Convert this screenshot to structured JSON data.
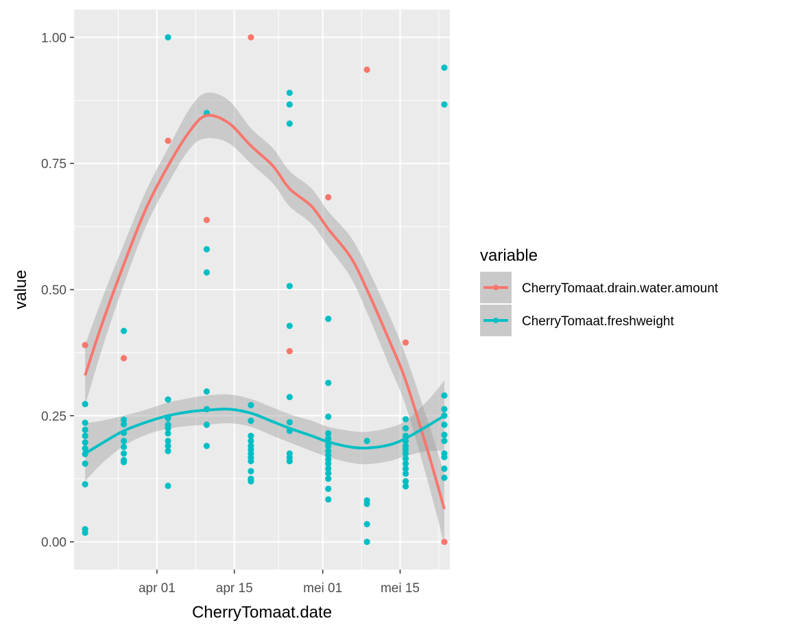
{
  "chart_data": {
    "type": "scatter",
    "xlabel": "CherryTomaat.date",
    "ylabel": "value",
    "x_tick_labels": [
      {
        "date": "2023-04-01",
        "label": "apr 01"
      },
      {
        "date": "2023-04-15",
        "label": "apr 15"
      },
      {
        "date": "2023-05-01",
        "label": "mei 01"
      },
      {
        "date": "2023-05-15",
        "label": "mei 15"
      }
    ],
    "xlim": [
      "2023-03-17",
      "2023-05-24"
    ],
    "y_tick_labels": [
      "0.00",
      "0.25",
      "0.50",
      "0.75",
      "1.00"
    ],
    "y_ticks": [
      0,
      0.25,
      0.5,
      0.75,
      1.0
    ],
    "ylim": [
      -0.055,
      1.055
    ],
    "grid": true,
    "smoothing": "loess with 95% confidence band",
    "legend": {
      "title": "variable",
      "position": "right",
      "entries": [
        "CherryTomaat.drain.water.amount",
        "CherryTomaat.freshweight"
      ]
    },
    "colors": {
      "panel": "#ebebeb",
      "grid_major": "#ffffff",
      "band": "#999999",
      "drain": "#F8766D",
      "fresh": "#00BFC4"
    },
    "series": [
      {
        "name": "CherryTomaat.drain.water.amount",
        "color": "#F8766D",
        "points": [
          {
            "x": "2023-03-19",
            "y": 0.39
          },
          {
            "x": "2023-03-26",
            "y": 0.364
          },
          {
            "x": "2023-04-03",
            "y": 0.795
          },
          {
            "x": "2023-04-10",
            "y": 0.638
          },
          {
            "x": "2023-04-18",
            "y": 1.0
          },
          {
            "x": "2023-04-25",
            "y": 0.378
          },
          {
            "x": "2023-05-02",
            "y": 0.683
          },
          {
            "x": "2023-05-09",
            "y": 0.936
          },
          {
            "x": "2023-05-16",
            "y": 0.395
          },
          {
            "x": "2023-05-23",
            "y": 0.0
          }
        ],
        "smooth": [
          {
            "x": "2023-03-19",
            "y": 0.33,
            "lo": 0.27,
            "hi": 0.39
          },
          {
            "x": "2023-03-22",
            "y": 0.43,
            "lo": 0.38,
            "hi": 0.48
          },
          {
            "x": "2023-03-26",
            "y": 0.55,
            "lo": 0.51,
            "hi": 0.59
          },
          {
            "x": "2023-03-30",
            "y": 0.66,
            "lo": 0.625,
            "hi": 0.695
          },
          {
            "x": "2023-04-03",
            "y": 0.745,
            "lo": 0.71,
            "hi": 0.78
          },
          {
            "x": "2023-04-07",
            "y": 0.815,
            "lo": 0.78,
            "hi": 0.86
          },
          {
            "x": "2023-04-10",
            "y": 0.845,
            "lo": 0.8,
            "hi": 0.89
          },
          {
            "x": "2023-04-14",
            "y": 0.83,
            "lo": 0.79,
            "hi": 0.875
          },
          {
            "x": "2023-04-18",
            "y": 0.785,
            "lo": 0.75,
            "hi": 0.82
          },
          {
            "x": "2023-04-22",
            "y": 0.745,
            "lo": 0.71,
            "hi": 0.78
          },
          {
            "x": "2023-04-25",
            "y": 0.7,
            "lo": 0.665,
            "hi": 0.735
          },
          {
            "x": "2023-04-29",
            "y": 0.665,
            "lo": 0.63,
            "hi": 0.7
          },
          {
            "x": "2023-05-02",
            "y": 0.62,
            "lo": 0.585,
            "hi": 0.655
          },
          {
            "x": "2023-05-06",
            "y": 0.565,
            "lo": 0.525,
            "hi": 0.605
          },
          {
            "x": "2023-05-09",
            "y": 0.5,
            "lo": 0.455,
            "hi": 0.545
          },
          {
            "x": "2023-05-13",
            "y": 0.4,
            "lo": 0.35,
            "hi": 0.45
          },
          {
            "x": "2023-05-16",
            "y": 0.32,
            "lo": 0.27,
            "hi": 0.37
          },
          {
            "x": "2023-05-20",
            "y": 0.18,
            "lo": 0.12,
            "hi": 0.24
          },
          {
            "x": "2023-05-23",
            "y": 0.065,
            "lo": -0.005,
            "hi": 0.135
          }
        ]
      },
      {
        "name": "CherryTomaat.freshweight",
        "color": "#00BFC4",
        "points": [
          {
            "x": "2023-03-19",
            "y": 0.273
          },
          {
            "x": "2023-03-19",
            "y": 0.236
          },
          {
            "x": "2023-03-19",
            "y": 0.222
          },
          {
            "x": "2023-03-19",
            "y": 0.21
          },
          {
            "x": "2023-03-19",
            "y": 0.197
          },
          {
            "x": "2023-03-19",
            "y": 0.185
          },
          {
            "x": "2023-03-19",
            "y": 0.174
          },
          {
            "x": "2023-03-19",
            "y": 0.155
          },
          {
            "x": "2023-03-19",
            "y": 0.114
          },
          {
            "x": "2023-03-19",
            "y": 0.025
          },
          {
            "x": "2023-03-19",
            "y": 0.018
          },
          {
            "x": "2023-03-26",
            "y": 0.418
          },
          {
            "x": "2023-03-26",
            "y": 0.242
          },
          {
            "x": "2023-03-26",
            "y": 0.233
          },
          {
            "x": "2023-03-26",
            "y": 0.216
          },
          {
            "x": "2023-03-26",
            "y": 0.2
          },
          {
            "x": "2023-03-26",
            "y": 0.188
          },
          {
            "x": "2023-03-26",
            "y": 0.175
          },
          {
            "x": "2023-03-26",
            "y": 0.162
          },
          {
            "x": "2023-03-26",
            "y": 0.158
          },
          {
            "x": "2023-04-03",
            "y": 1.0
          },
          {
            "x": "2023-04-03",
            "y": 0.282
          },
          {
            "x": "2023-04-03",
            "y": 0.245
          },
          {
            "x": "2023-04-03",
            "y": 0.232
          },
          {
            "x": "2023-04-03",
            "y": 0.225
          },
          {
            "x": "2023-04-03",
            "y": 0.215
          },
          {
            "x": "2023-04-03",
            "y": 0.2
          },
          {
            "x": "2023-04-03",
            "y": 0.19
          },
          {
            "x": "2023-04-03",
            "y": 0.18
          },
          {
            "x": "2023-04-03",
            "y": 0.111
          },
          {
            "x": "2023-04-10",
            "y": 0.85
          },
          {
            "x": "2023-04-10",
            "y": 0.58
          },
          {
            "x": "2023-04-10",
            "y": 0.534
          },
          {
            "x": "2023-04-10",
            "y": 0.298
          },
          {
            "x": "2023-04-10",
            "y": 0.263
          },
          {
            "x": "2023-04-10",
            "y": 0.232
          },
          {
            "x": "2023-04-10",
            "y": 0.19
          },
          {
            "x": "2023-04-18",
            "y": 0.271
          },
          {
            "x": "2023-04-18",
            "y": 0.24
          },
          {
            "x": "2023-04-18",
            "y": 0.21
          },
          {
            "x": "2023-04-18",
            "y": 0.2
          },
          {
            "x": "2023-04-18",
            "y": 0.19
          },
          {
            "x": "2023-04-18",
            "y": 0.183
          },
          {
            "x": "2023-04-18",
            "y": 0.175
          },
          {
            "x": "2023-04-18",
            "y": 0.167
          },
          {
            "x": "2023-04-18",
            "y": 0.16
          },
          {
            "x": "2023-04-18",
            "y": 0.14
          },
          {
            "x": "2023-04-18",
            "y": 0.125
          },
          {
            "x": "2023-04-18",
            "y": 0.12
          },
          {
            "x": "2023-04-25",
            "y": 0.89
          },
          {
            "x": "2023-04-25",
            "y": 0.867
          },
          {
            "x": "2023-04-25",
            "y": 0.829
          },
          {
            "x": "2023-04-25",
            "y": 0.507
          },
          {
            "x": "2023-04-25",
            "y": 0.428
          },
          {
            "x": "2023-04-25",
            "y": 0.287
          },
          {
            "x": "2023-04-25",
            "y": 0.237
          },
          {
            "x": "2023-04-25",
            "y": 0.22
          },
          {
            "x": "2023-04-25",
            "y": 0.175
          },
          {
            "x": "2023-04-25",
            "y": 0.167
          },
          {
            "x": "2023-04-25",
            "y": 0.16
          },
          {
            "x": "2023-05-02",
            "y": 0.442
          },
          {
            "x": "2023-05-02",
            "y": 0.315
          },
          {
            "x": "2023-05-02",
            "y": 0.248
          },
          {
            "x": "2023-05-02",
            "y": 0.215
          },
          {
            "x": "2023-05-02",
            "y": 0.205
          },
          {
            "x": "2023-05-02",
            "y": 0.197
          },
          {
            "x": "2023-05-02",
            "y": 0.19
          },
          {
            "x": "2023-05-02",
            "y": 0.18
          },
          {
            "x": "2023-05-02",
            "y": 0.172
          },
          {
            "x": "2023-05-02",
            "y": 0.163
          },
          {
            "x": "2023-05-02",
            "y": 0.155
          },
          {
            "x": "2023-05-02",
            "y": 0.145
          },
          {
            "x": "2023-05-02",
            "y": 0.136
          },
          {
            "x": "2023-05-02",
            "y": 0.125
          },
          {
            "x": "2023-05-02",
            "y": 0.105
          },
          {
            "x": "2023-05-02",
            "y": 0.084
          },
          {
            "x": "2023-05-09",
            "y": 0.2
          },
          {
            "x": "2023-05-09",
            "y": 0.082
          },
          {
            "x": "2023-05-09",
            "y": 0.075
          },
          {
            "x": "2023-05-09",
            "y": 0.035
          },
          {
            "x": "2023-05-09",
            "y": 0.0
          },
          {
            "x": "2023-05-16",
            "y": 0.243
          },
          {
            "x": "2023-05-16",
            "y": 0.225
          },
          {
            "x": "2023-05-16",
            "y": 0.21
          },
          {
            "x": "2023-05-16",
            "y": 0.2
          },
          {
            "x": "2023-05-16",
            "y": 0.19
          },
          {
            "x": "2023-05-16",
            "y": 0.183
          },
          {
            "x": "2023-05-16",
            "y": 0.175
          },
          {
            "x": "2023-05-16",
            "y": 0.165
          },
          {
            "x": "2023-05-16",
            "y": 0.155
          },
          {
            "x": "2023-05-16",
            "y": 0.145
          },
          {
            "x": "2023-05-16",
            "y": 0.135
          },
          {
            "x": "2023-05-16",
            "y": 0.12
          },
          {
            "x": "2023-05-16",
            "y": 0.11
          },
          {
            "x": "2023-05-23",
            "y": 0.94
          },
          {
            "x": "2023-05-23",
            "y": 0.867
          },
          {
            "x": "2023-05-23",
            "y": 0.29
          },
          {
            "x": "2023-05-23",
            "y": 0.263
          },
          {
            "x": "2023-05-23",
            "y": 0.25
          },
          {
            "x": "2023-05-23",
            "y": 0.232
          },
          {
            "x": "2023-05-23",
            "y": 0.212
          },
          {
            "x": "2023-05-23",
            "y": 0.2
          },
          {
            "x": "2023-05-23",
            "y": 0.175
          },
          {
            "x": "2023-05-23",
            "y": 0.168
          },
          {
            "x": "2023-05-23",
            "y": 0.145
          },
          {
            "x": "2023-05-23",
            "y": 0.127
          }
        ],
        "smooth": [
          {
            "x": "2023-03-19",
            "y": 0.175,
            "lo": 0.12,
            "hi": 0.235
          },
          {
            "x": "2023-03-22",
            "y": 0.195,
            "lo": 0.155,
            "hi": 0.24
          },
          {
            "x": "2023-03-26",
            "y": 0.22,
            "lo": 0.19,
            "hi": 0.25
          },
          {
            "x": "2023-03-30",
            "y": 0.237,
            "lo": 0.212,
            "hi": 0.262
          },
          {
            "x": "2023-04-03",
            "y": 0.25,
            "lo": 0.224,
            "hi": 0.276
          },
          {
            "x": "2023-04-07",
            "y": 0.258,
            "lo": 0.23,
            "hi": 0.285
          },
          {
            "x": "2023-04-10",
            "y": 0.261,
            "lo": 0.232,
            "hi": 0.29
          },
          {
            "x": "2023-04-14",
            "y": 0.263,
            "lo": 0.235,
            "hi": 0.292
          },
          {
            "x": "2023-04-18",
            "y": 0.255,
            "lo": 0.228,
            "hi": 0.283
          },
          {
            "x": "2023-04-22",
            "y": 0.238,
            "lo": 0.21,
            "hi": 0.266
          },
          {
            "x": "2023-04-25",
            "y": 0.225,
            "lo": 0.197,
            "hi": 0.253
          },
          {
            "x": "2023-04-29",
            "y": 0.21,
            "lo": 0.18,
            "hi": 0.24
          },
          {
            "x": "2023-05-02",
            "y": 0.198,
            "lo": 0.168,
            "hi": 0.228
          },
          {
            "x": "2023-05-06",
            "y": 0.188,
            "lo": 0.157,
            "hi": 0.22
          },
          {
            "x": "2023-05-09",
            "y": 0.186,
            "lo": 0.154,
            "hi": 0.218
          },
          {
            "x": "2023-05-13",
            "y": 0.192,
            "lo": 0.16,
            "hi": 0.226
          },
          {
            "x": "2023-05-16",
            "y": 0.205,
            "lo": 0.17,
            "hi": 0.24
          },
          {
            "x": "2023-05-20",
            "y": 0.23,
            "lo": 0.18,
            "hi": 0.28
          },
          {
            "x": "2023-05-23",
            "y": 0.25,
            "lo": 0.18,
            "hi": 0.32
          }
        ]
      }
    ]
  }
}
